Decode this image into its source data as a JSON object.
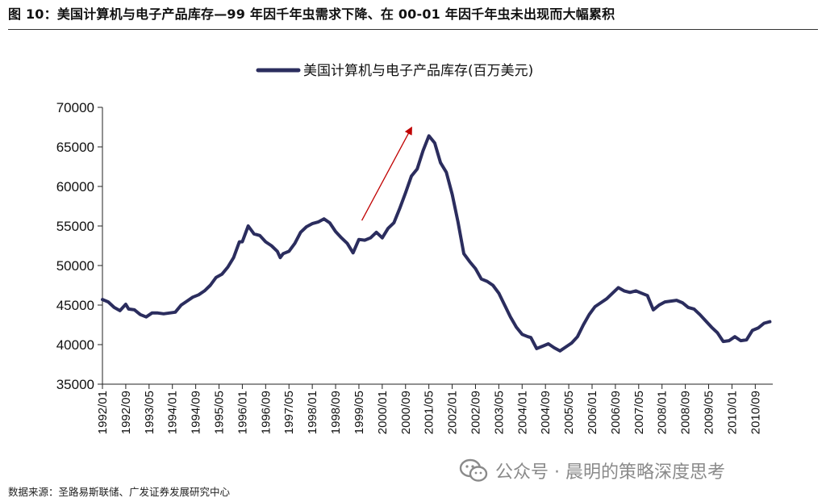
{
  "figure_title": "图 10：美国计算机与电子产品库存—99 年因千年虫需求下降、在 00-01 年因千年虫未出现而大幅累积",
  "source": "数据来源：圣路易斯联储、广发证券发展研究中心",
  "watermark": {
    "icon": "wechat-icon",
    "text": "公众号 · 晨明的策略深度思考"
  },
  "colors": {
    "series": "#2B2D5E",
    "arrow": "#C00000",
    "axis": "#222222",
    "watermark": "#8a8a8a"
  },
  "chart_data": {
    "type": "line",
    "title": "",
    "xlabel": "",
    "ylabel": "",
    "legend_position": "top-center",
    "grid": false,
    "ylim": [
      35000,
      70000
    ],
    "yticks": [
      35000,
      40000,
      45000,
      50000,
      55000,
      60000,
      65000,
      70000
    ],
    "xlim": [
      "1992/01",
      "2011/03"
    ],
    "xticks": [
      "1992/01",
      "1992/09",
      "1993/05",
      "1994/01",
      "1994/09",
      "1995/05",
      "1996/01",
      "1996/09",
      "1997/05",
      "1998/01",
      "1998/09",
      "1999/05",
      "2000/01",
      "2000/09",
      "2001/05",
      "2002/01",
      "2002/09",
      "2003/05",
      "2004/01",
      "2004/09",
      "2005/05",
      "2006/01",
      "2006/09",
      "2007/05",
      "2008/01",
      "2008/09",
      "2009/05",
      "2010/01",
      "2010/09"
    ],
    "series": [
      {
        "name": "美国计算机与电子产品库存(百万美元)",
        "points": [
          [
            "1992/01",
            45700
          ],
          [
            "1992/03",
            45400
          ],
          [
            "1992/05",
            44700
          ],
          [
            "1992/07",
            44300
          ],
          [
            "1992/09",
            45100
          ],
          [
            "1992/10",
            44500
          ],
          [
            "1992/12",
            44400
          ],
          [
            "1993/02",
            43800
          ],
          [
            "1993/04",
            43500
          ],
          [
            "1993/06",
            44000
          ],
          [
            "1993/08",
            44000
          ],
          [
            "1993/10",
            43900
          ],
          [
            "1993/12",
            44000
          ],
          [
            "1994/02",
            44100
          ],
          [
            "1994/04",
            45000
          ],
          [
            "1994/06",
            45500
          ],
          [
            "1994/08",
            46000
          ],
          [
            "1994/10",
            46300
          ],
          [
            "1994/12",
            46800
          ],
          [
            "1995/02",
            47500
          ],
          [
            "1995/04",
            48500
          ],
          [
            "1995/06",
            48900
          ],
          [
            "1995/08",
            49800
          ],
          [
            "1995/10",
            51000
          ],
          [
            "1995/12",
            53000
          ],
          [
            "1996/01",
            53000
          ],
          [
            "1996/03",
            55000
          ],
          [
            "1996/05",
            54000
          ],
          [
            "1996/07",
            53800
          ],
          [
            "1996/09",
            53000
          ],
          [
            "1996/11",
            52500
          ],
          [
            "1997/01",
            51800
          ],
          [
            "1997/02",
            51000
          ],
          [
            "1997/03",
            51500
          ],
          [
            "1997/05",
            51800
          ],
          [
            "1997/07",
            52800
          ],
          [
            "1997/09",
            54200
          ],
          [
            "1997/11",
            54900
          ],
          [
            "1998/01",
            55300
          ],
          [
            "1998/03",
            55500
          ],
          [
            "1998/05",
            55900
          ],
          [
            "1998/07",
            55400
          ],
          [
            "1998/09",
            54300
          ],
          [
            "1998/11",
            53500
          ],
          [
            "1999/01",
            52800
          ],
          [
            "1999/03",
            51600
          ],
          [
            "1999/05",
            53300
          ],
          [
            "1999/07",
            53200
          ],
          [
            "1999/09",
            53500
          ],
          [
            "1999/11",
            54200
          ],
          [
            "2000/01",
            53500
          ],
          [
            "2000/03",
            54700
          ],
          [
            "2000/05",
            55400
          ],
          [
            "2000/07",
            57200
          ],
          [
            "2000/09",
            59200
          ],
          [
            "2000/11",
            61300
          ],
          [
            "2001/01",
            62200
          ],
          [
            "2001/03",
            64500
          ],
          [
            "2001/05",
            66400
          ],
          [
            "2001/07",
            65500
          ],
          [
            "2001/09",
            63000
          ],
          [
            "2001/11",
            61800
          ],
          [
            "2002/01",
            59000
          ],
          [
            "2002/03",
            55500
          ],
          [
            "2002/05",
            51500
          ],
          [
            "2002/07",
            50500
          ],
          [
            "2002/09",
            49600
          ],
          [
            "2002/11",
            48300
          ],
          [
            "2003/01",
            48000
          ],
          [
            "2003/03",
            47500
          ],
          [
            "2003/05",
            46500
          ],
          [
            "2003/07",
            45000
          ],
          [
            "2003/09",
            43500
          ],
          [
            "2003/11",
            42200
          ],
          [
            "2004/01",
            41300
          ],
          [
            "2004/03",
            41000
          ],
          [
            "2004/04",
            40900
          ],
          [
            "2004/06",
            39500
          ],
          [
            "2004/08",
            39800
          ],
          [
            "2004/10",
            40100
          ],
          [
            "2004/12",
            39600
          ],
          [
            "2005/02",
            39200
          ],
          [
            "2005/04",
            39700
          ],
          [
            "2005/06",
            40200
          ],
          [
            "2005/08",
            41000
          ],
          [
            "2005/10",
            42500
          ],
          [
            "2005/12",
            43800
          ],
          [
            "2006/02",
            44800
          ],
          [
            "2006/04",
            45300
          ],
          [
            "2006/06",
            45800
          ],
          [
            "2006/08",
            46500
          ],
          [
            "2006/10",
            47200
          ],
          [
            "2006/12",
            46800
          ],
          [
            "2007/02",
            46600
          ],
          [
            "2007/04",
            46800
          ],
          [
            "2007/06",
            46500
          ],
          [
            "2007/08",
            46200
          ],
          [
            "2007/10",
            44400
          ],
          [
            "2007/12",
            45000
          ],
          [
            "2008/02",
            45400
          ],
          [
            "2008/04",
            45500
          ],
          [
            "2008/06",
            45600
          ],
          [
            "2008/08",
            45300
          ],
          [
            "2008/10",
            44700
          ],
          [
            "2008/12",
            44500
          ],
          [
            "2009/02",
            43800
          ],
          [
            "2009/04",
            43000
          ],
          [
            "2009/06",
            42200
          ],
          [
            "2009/08",
            41500
          ],
          [
            "2009/10",
            40400
          ],
          [
            "2009/12",
            40500
          ],
          [
            "2010/02",
            41000
          ],
          [
            "2010/04",
            40500
          ],
          [
            "2010/06",
            40600
          ],
          [
            "2010/08",
            41800
          ],
          [
            "2010/10",
            42100
          ],
          [
            "2010/12",
            42700
          ],
          [
            "2011/02",
            42900
          ]
        ]
      }
    ],
    "annotations": [
      {
        "type": "arrow",
        "from": [
          "1999/06",
          55700
        ],
        "to": [
          "2000/11",
          67400
        ]
      }
    ]
  }
}
